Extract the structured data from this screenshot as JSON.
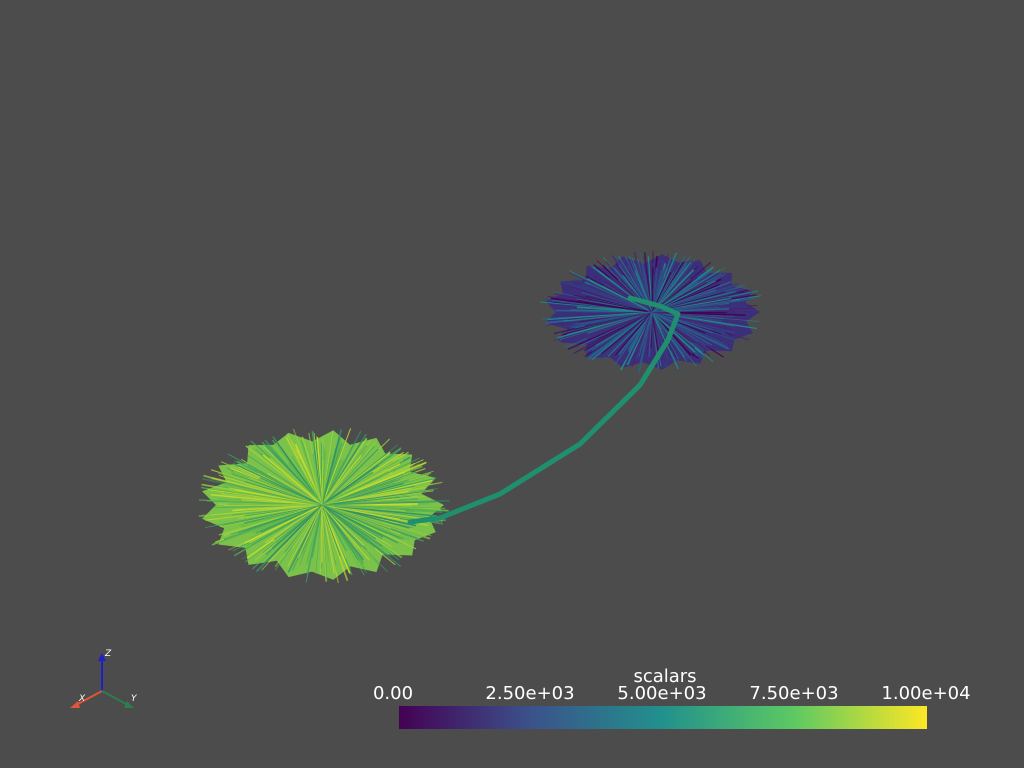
{
  "scalar_bar": {
    "title": "scalars",
    "ticks": [
      "0.00",
      "2.50e+03",
      "5.00e+03",
      "7.50e+03",
      "1.00e+04"
    ],
    "colormap": [
      "#440154",
      "#3b528b",
      "#21918c",
      "#5ec962",
      "#fde725"
    ]
  },
  "orientation_axes": {
    "x_label": "X",
    "y_label": "Y",
    "z_label": "Z",
    "x_color": "#e0553c",
    "y_color": "#2e7d4f",
    "z_color": "#2020c8"
  },
  "scene": {
    "background": "#4c4c4c",
    "tube_color": "#1f8f6e",
    "disc_high_color": "#7ac24a",
    "disc_low_color": "#3b2f7a"
  }
}
